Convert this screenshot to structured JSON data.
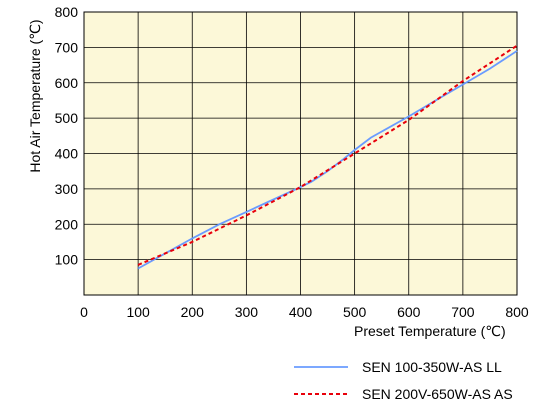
{
  "chart_data": {
    "type": "line",
    "xlabel": "Preset Temperature (℃)",
    "ylabel": "Hot Air Temperature (℃)",
    "xlim": [
      0,
      800
    ],
    "ylim": [
      0,
      800
    ],
    "x_ticks": [
      0,
      100,
      200,
      300,
      400,
      500,
      600,
      700,
      800
    ],
    "y_ticks": [
      100,
      200,
      300,
      400,
      500,
      600,
      700,
      800
    ],
    "grid": true,
    "legend_position": "bottom-right",
    "series": [
      {
        "name": "SEN 100-350W-AS LL",
        "color": "#6a9bff",
        "style": "solid",
        "x": [
          100,
          200,
          250,
          300,
          350,
          400,
          420,
          450,
          480,
          500,
          530,
          600,
          650,
          700,
          750,
          800
        ],
        "y": [
          75,
          160,
          200,
          235,
          270,
          305,
          320,
          350,
          385,
          410,
          445,
          505,
          550,
          595,
          640,
          690
        ]
      },
      {
        "name": "SEN 200V-650W-AS AS",
        "color": "#e8000b",
        "style": "dashed",
        "x": [
          100,
          200,
          300,
          400,
          500,
          600,
          700,
          800
        ],
        "y": [
          85,
          150,
          225,
          305,
          400,
          495,
          605,
          705
        ]
      }
    ]
  }
}
